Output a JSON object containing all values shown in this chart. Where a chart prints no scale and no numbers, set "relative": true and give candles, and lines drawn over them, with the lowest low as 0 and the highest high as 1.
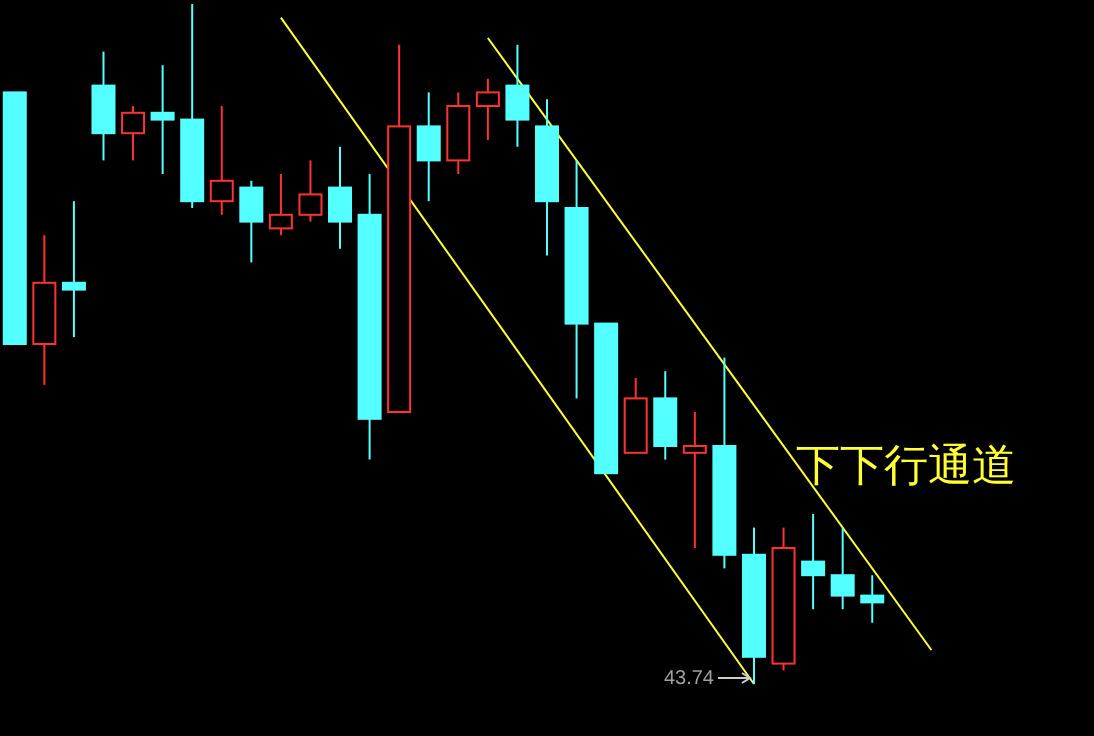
{
  "chart_data": {
    "type": "candlestick",
    "relative": true,
    "categories": [
      null,
      null,
      null,
      null,
      null,
      null,
      null,
      null,
      null,
      null,
      null,
      null,
      null,
      null,
      null,
      null,
      null,
      null,
      null,
      null,
      null,
      null,
      null,
      null,
      null,
      null,
      null,
      null,
      null,
      null,
      null,
      null,
      null,
      null,
      null,
      null,
      null
    ],
    "ohlc": [
      [
        0.87,
        0.87,
        0.5,
        0.5
      ],
      [
        0.5,
        0.66,
        0.44,
        0.59
      ],
      [
        0.59,
        0.71,
        0.51,
        0.58
      ],
      [
        0.88,
        0.93,
        0.77,
        0.81
      ],
      [
        0.81,
        0.85,
        0.77,
        0.84
      ],
      [
        0.84,
        0.91,
        0.75,
        0.83
      ],
      [
        0.83,
        1.0,
        0.7,
        0.71
      ],
      [
        0.71,
        0.85,
        0.69,
        0.74
      ],
      [
        0.73,
        0.74,
        0.62,
        0.68
      ],
      [
        0.67,
        0.75,
        0.66,
        0.69
      ],
      [
        0.69,
        0.77,
        0.68,
        0.72
      ],
      [
        0.73,
        0.79,
        0.64,
        0.68
      ],
      [
        0.69,
        0.75,
        0.33,
        0.39
      ],
      [
        0.4,
        0.94,
        0.4,
        0.82
      ],
      [
        0.82,
        0.87,
        0.71,
        0.77
      ],
      [
        0.77,
        0.87,
        0.75,
        0.85
      ],
      [
        0.85,
        0.89,
        0.8,
        0.87
      ],
      [
        0.88,
        0.94,
        0.79,
        0.83
      ],
      [
        0.82,
        0.86,
        0.63,
        0.71
      ],
      [
        0.7,
        0.77,
        0.42,
        0.53
      ],
      [
        0.53,
        0.53,
        0.31,
        0.31
      ],
      [
        0.34,
        0.45,
        0.34,
        0.42
      ],
      [
        0.42,
        0.46,
        0.33,
        0.35
      ],
      [
        0.34,
        0.4,
        0.2,
        0.35
      ],
      [
        0.35,
        0.48,
        0.17,
        0.19
      ],
      [
        0.19,
        0.23,
        0.0,
        0.04
      ],
      [
        0.03,
        0.23,
        0.02,
        0.2
      ],
      [
        0.18,
        0.25,
        0.11,
        0.16
      ],
      [
        0.16,
        0.23,
        0.11,
        0.13
      ],
      [
        0.13,
        0.16,
        0.09,
        0.12
      ],
      null,
      null,
      null,
      null,
      null,
      null,
      null
    ],
    "colors": [
      "#54ffff",
      "#ff3232",
      "#54ffff",
      "#54ffff",
      "#ff3232",
      "#54ffff",
      "#54ffff",
      "#ff3232",
      "#54ffff",
      "#ff3232",
      "#ff3232",
      "#54ffff",
      "#54ffff",
      "#ff3232",
      "#54ffff",
      "#ff3232",
      "#ff3232",
      "#54ffff",
      "#54ffff",
      "#54ffff",
      "#54ffff",
      "#ff3232",
      "#54ffff",
      "#ff3232",
      "#54ffff",
      "#54ffff",
      "#ff3232",
      "#54ffff",
      "#54ffff",
      "#54ffff",
      null,
      null,
      null,
      null,
      null,
      null,
      null
    ],
    "series": [
      {
        "type": "line",
        "color": "#ffff33",
        "values": [
          null,
          null,
          null,
          null,
          null,
          null,
          null,
          null,
          null,
          0.98,
          null,
          null,
          null,
          null,
          null,
          null,
          null,
          null,
          null,
          null,
          null,
          null,
          null,
          null,
          null,
          0,
          null,
          null,
          null,
          null,
          null,
          null,
          null,
          null,
          null,
          null,
          null
        ]
      },
      {
        "type": "line",
        "color": "#ffff33",
        "values": [
          null,
          null,
          null,
          null,
          null,
          null,
          null,
          null,
          null,
          null,
          null,
          null,
          null,
          null,
          null,
          null,
          0.95,
          null,
          null,
          null,
          null,
          null,
          null,
          null,
          null,
          null,
          null,
          null,
          null,
          null,
          null,
          0.05,
          null,
          null,
          null,
          null,
          null
        ]
      }
    ],
    "annotations": [
      "下下行通道",
      "43.74"
    ]
  }
}
